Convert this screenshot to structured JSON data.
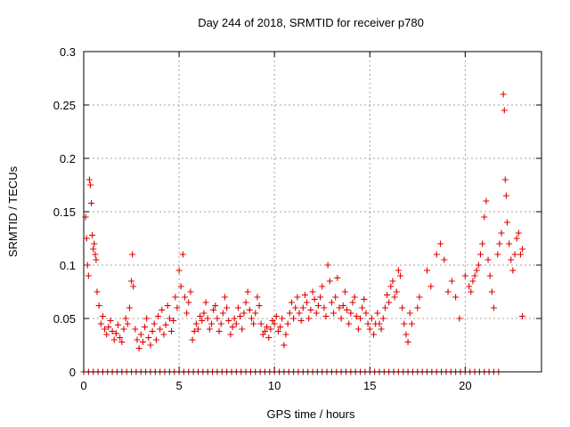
{
  "chart_data": {
    "type": "scatter",
    "title": "Day 244 of 2018, SRMTID for receiver p780",
    "xlabel": "GPS time / hours",
    "ylabel": "SRMTID / TECUs",
    "xlim": [
      0,
      24
    ],
    "ylim": [
      0,
      0.3
    ],
    "x_ticks": [
      0,
      5,
      10,
      15,
      20
    ],
    "x_tick_labels": [
      "0",
      "5",
      "10",
      "15",
      "20"
    ],
    "y_ticks": [
      0,
      0.05,
      0.1,
      0.15,
      0.2,
      0.25,
      0.3
    ],
    "y_tick_labels": [
      "0",
      "0.05",
      "0.1",
      "0.15",
      "0.2",
      "0.25",
      "0.3"
    ],
    "grid": true,
    "marker": "plus",
    "color": "#e00000",
    "series": [
      {
        "name": "SRMTID",
        "points": [
          [
            0.1,
            0.145
          ],
          [
            0.15,
            0.125
          ],
          [
            0.2,
            0.1
          ],
          [
            0.25,
            0.09
          ],
          [
            0.3,
            0.18
          ],
          [
            0.35,
            0.175
          ],
          [
            0.4,
            0.158
          ],
          [
            0.45,
            0.128
          ],
          [
            0.5,
            0.115
          ],
          [
            0.55,
            0.12
          ],
          [
            0.6,
            0.11
          ],
          [
            0.65,
            0.105
          ],
          [
            0.7,
            0.075
          ],
          [
            0.8,
            0.062
          ],
          [
            0.9,
            0.045
          ],
          [
            1.0,
            0.052
          ],
          [
            1.1,
            0.04
          ],
          [
            1.2,
            0.035
          ],
          [
            1.3,
            0.042
          ],
          [
            1.4,
            0.048
          ],
          [
            1.5,
            0.038
          ],
          [
            1.6,
            0.03
          ],
          [
            1.7,
            0.036
          ],
          [
            1.8,
            0.044
          ],
          [
            1.9,
            0.032
          ],
          [
            2.0,
            0.028
          ],
          [
            2.1,
            0.04
          ],
          [
            2.2,
            0.05
          ],
          [
            2.3,
            0.045
          ],
          [
            2.4,
            0.06
          ],
          [
            2.5,
            0.085
          ],
          [
            2.55,
            0.11
          ],
          [
            2.6,
            0.08
          ],
          [
            2.7,
            0.04
          ],
          [
            2.8,
            0.03
          ],
          [
            2.9,
            0.022
          ],
          [
            3.0,
            0.035
          ],
          [
            3.1,
            0.028
          ],
          [
            3.2,
            0.042
          ],
          [
            3.3,
            0.05
          ],
          [
            3.4,
            0.032
          ],
          [
            3.5,
            0.025
          ],
          [
            3.6,
            0.038
          ],
          [
            3.7,
            0.045
          ],
          [
            3.8,
            0.03
          ],
          [
            3.9,
            0.052
          ],
          [
            4.0,
            0.04
          ],
          [
            4.1,
            0.058
          ],
          [
            4.2,
            0.035
          ],
          [
            4.3,
            0.044
          ],
          [
            4.4,
            0.062
          ],
          [
            4.5,
            0.05
          ],
          [
            4.6,
            0.038
          ],
          [
            4.7,
            0.048
          ],
          [
            4.8,
            0.07
          ],
          [
            4.9,
            0.06
          ],
          [
            5.0,
            0.095
          ],
          [
            5.1,
            0.08
          ],
          [
            5.2,
            0.11
          ],
          [
            5.3,
            0.07
          ],
          [
            5.4,
            0.055
          ],
          [
            5.5,
            0.065
          ],
          [
            5.6,
            0.075
          ],
          [
            5.7,
            0.03
          ],
          [
            5.8,
            0.038
          ],
          [
            5.9,
            0.045
          ],
          [
            6.0,
            0.04
          ],
          [
            6.1,
            0.052
          ],
          [
            6.2,
            0.048
          ],
          [
            6.3,
            0.055
          ],
          [
            6.4,
            0.065
          ],
          [
            6.5,
            0.05
          ],
          [
            6.6,
            0.04
          ],
          [
            6.7,
            0.045
          ],
          [
            6.8,
            0.058
          ],
          [
            6.9,
            0.062
          ],
          [
            7.0,
            0.05
          ],
          [
            7.1,
            0.038
          ],
          [
            7.2,
            0.045
          ],
          [
            7.3,
            0.055
          ],
          [
            7.4,
            0.07
          ],
          [
            7.5,
            0.06
          ],
          [
            7.6,
            0.048
          ],
          [
            7.7,
            0.035
          ],
          [
            7.8,
            0.042
          ],
          [
            7.9,
            0.05
          ],
          [
            8.0,
            0.045
          ],
          [
            8.1,
            0.06
          ],
          [
            8.2,
            0.052
          ],
          [
            8.3,
            0.04
          ],
          [
            8.4,
            0.055
          ],
          [
            8.5,
            0.065
          ],
          [
            8.6,
            0.075
          ],
          [
            8.7,
            0.058
          ],
          [
            8.8,
            0.05
          ],
          [
            8.9,
            0.045
          ],
          [
            9.0,
            0.055
          ],
          [
            9.1,
            0.07
          ],
          [
            9.2,
            0.062
          ],
          [
            9.3,
            0.045
          ],
          [
            9.4,
            0.035
          ],
          [
            9.5,
            0.038
          ],
          [
            9.6,
            0.042
          ],
          [
            9.7,
            0.032
          ],
          [
            9.8,
            0.04
          ],
          [
            9.9,
            0.048
          ],
          [
            10.0,
            0.045
          ],
          [
            10.1,
            0.052
          ],
          [
            10.2,
            0.038
          ],
          [
            10.3,
            0.042
          ],
          [
            10.4,
            0.05
          ],
          [
            10.5,
            0.025
          ],
          [
            10.6,
            0.035
          ],
          [
            10.7,
            0.045
          ],
          [
            10.8,
            0.055
          ],
          [
            10.9,
            0.065
          ],
          [
            11.0,
            0.05
          ],
          [
            11.1,
            0.06
          ],
          [
            11.2,
            0.07
          ],
          [
            11.3,
            0.055
          ],
          [
            11.4,
            0.048
          ],
          [
            11.5,
            0.06
          ],
          [
            11.6,
            0.072
          ],
          [
            11.7,
            0.065
          ],
          [
            11.8,
            0.05
          ],
          [
            11.9,
            0.058
          ],
          [
            12.0,
            0.075
          ],
          [
            12.1,
            0.068
          ],
          [
            12.2,
            0.055
          ],
          [
            12.3,
            0.062
          ],
          [
            12.4,
            0.07
          ],
          [
            12.5,
            0.08
          ],
          [
            12.6,
            0.06
          ],
          [
            12.7,
            0.052
          ],
          [
            12.8,
            0.1
          ],
          [
            12.9,
            0.085
          ],
          [
            13.0,
            0.065
          ],
          [
            13.1,
            0.055
          ],
          [
            13.2,
            0.07
          ],
          [
            13.3,
            0.088
          ],
          [
            13.4,
            0.06
          ],
          [
            13.5,
            0.05
          ],
          [
            13.6,
            0.062
          ],
          [
            13.7,
            0.075
          ],
          [
            13.8,
            0.058
          ],
          [
            13.9,
            0.045
          ],
          [
            14.0,
            0.055
          ],
          [
            14.1,
            0.065
          ],
          [
            14.2,
            0.07
          ],
          [
            14.3,
            0.052
          ],
          [
            14.4,
            0.04
          ],
          [
            14.5,
            0.05
          ],
          [
            14.6,
            0.06
          ],
          [
            14.7,
            0.068
          ],
          [
            14.8,
            0.055
          ],
          [
            14.9,
            0.045
          ],
          [
            15.0,
            0.04
          ],
          [
            15.1,
            0.05
          ],
          [
            15.2,
            0.035
          ],
          [
            15.3,
            0.045
          ],
          [
            15.4,
            0.055
          ],
          [
            15.5,
            0.045
          ],
          [
            15.6,
            0.04
          ],
          [
            15.7,
            0.05
          ],
          [
            15.8,
            0.06
          ],
          [
            15.9,
            0.072
          ],
          [
            16.0,
            0.065
          ],
          [
            16.1,
            0.08
          ],
          [
            16.2,
            0.085
          ],
          [
            16.3,
            0.07
          ],
          [
            16.4,
            0.075
          ],
          [
            16.5,
            0.095
          ],
          [
            16.6,
            0.09
          ],
          [
            16.7,
            0.06
          ],
          [
            16.8,
            0.045
          ],
          [
            16.9,
            0.035
          ],
          [
            17.0,
            0.028
          ],
          [
            17.1,
            0.055
          ],
          [
            17.2,
            0.045
          ],
          [
            17.5,
            0.06
          ],
          [
            17.6,
            0.07
          ],
          [
            18.0,
            0.095
          ],
          [
            18.2,
            0.08
          ],
          [
            18.5,
            0.11
          ],
          [
            18.7,
            0.12
          ],
          [
            18.9,
            0.105
          ],
          [
            19.1,
            0.075
          ],
          [
            19.3,
            0.085
          ],
          [
            19.5,
            0.07
          ],
          [
            19.7,
            0.05
          ],
          [
            20.0,
            0.09
          ],
          [
            20.2,
            0.08
          ],
          [
            20.3,
            0.075
          ],
          [
            20.4,
            0.085
          ],
          [
            20.5,
            0.09
          ],
          [
            20.6,
            0.095
          ],
          [
            20.7,
            0.1
          ],
          [
            20.8,
            0.11
          ],
          [
            20.9,
            0.12
          ],
          [
            21.0,
            0.145
          ],
          [
            21.1,
            0.16
          ],
          [
            21.2,
            0.105
          ],
          [
            21.3,
            0.09
          ],
          [
            21.4,
            0.075
          ],
          [
            21.5,
            0.06
          ],
          [
            21.7,
            0.11
          ],
          [
            21.8,
            0.12
          ],
          [
            21.9,
            0.13
          ],
          [
            22.0,
            0.26
          ],
          [
            22.05,
            0.245
          ],
          [
            22.1,
            0.18
          ],
          [
            22.15,
            0.165
          ],
          [
            22.2,
            0.14
          ],
          [
            22.3,
            0.12
          ],
          [
            22.4,
            0.105
          ],
          [
            22.5,
            0.095
          ],
          [
            22.6,
            0.11
          ],
          [
            22.7,
            0.125
          ],
          [
            22.8,
            0.13
          ],
          [
            22.9,
            0.11
          ],
          [
            23.0,
            0.115
          ],
          [
            23.0,
            0.052
          ]
        ]
      },
      {
        "name": "zero values",
        "x_start": 0,
        "x_end": 21.8,
        "x_step": 0.25,
        "y": 0
      }
    ]
  }
}
